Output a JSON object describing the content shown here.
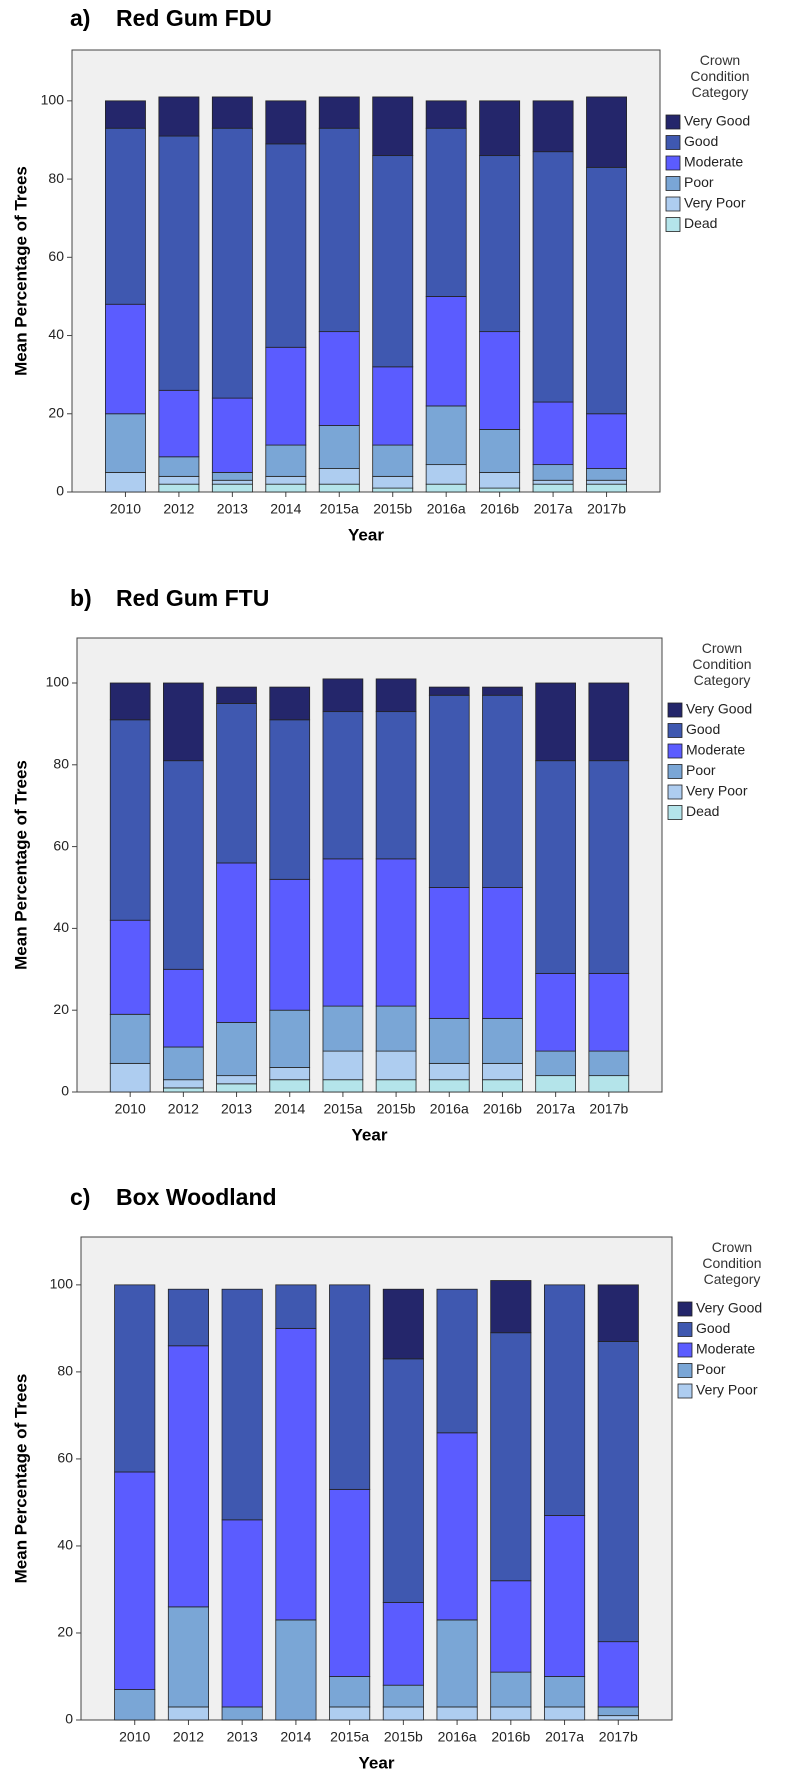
{
  "chart_data": [
    {
      "type": "stacked_bar",
      "panel": "a)",
      "title": "Red Gum FDU",
      "x_label": "Year",
      "y_label": "Mean Percentage of Trees",
      "legend_title": "Crown Condition Category",
      "categories": [
        "2010",
        "2012",
        "2013",
        "2014",
        "2015a",
        "2015b",
        "2016a",
        "2016b",
        "2017a",
        "2017b"
      ],
      "ylim": [
        0,
        113
      ],
      "yticks": [
        0,
        20,
        40,
        60,
        80,
        100
      ],
      "grid": false,
      "series": [
        {
          "name": "Dead",
          "color": "#b4e4ea",
          "values": [
            0,
            2,
            2,
            2,
            2,
            1,
            2,
            1,
            2,
            2
          ]
        },
        {
          "name": "Very Poor",
          "color": "#aecdf0",
          "values": [
            5,
            2,
            1,
            2,
            4,
            3,
            5,
            4,
            1,
            1
          ]
        },
        {
          "name": "Poor",
          "color": "#7aa6d6",
          "values": [
            15,
            5,
            2,
            8,
            11,
            8,
            15,
            11,
            4,
            3
          ]
        },
        {
          "name": "Moderate",
          "color": "#5b5cff",
          "values": [
            28,
            17,
            19,
            25,
            24,
            20,
            28,
            25,
            16,
            14
          ]
        },
        {
          "name": "Good",
          "color": "#3f58b0",
          "values": [
            45,
            65,
            69,
            52,
            52,
            54,
            43,
            45,
            64,
            63
          ]
        },
        {
          "name": "Very Good",
          "color": "#24266b",
          "values": [
            7,
            10,
            8,
            11,
            8,
            15,
            7,
            14,
            13,
            18
          ]
        }
      ]
    },
    {
      "type": "stacked_bar",
      "panel": "b)",
      "title": "Red Gum FTU",
      "x_label": "Year",
      "y_label": "Mean Percentage of Trees",
      "legend_title": "Crown Condition Category",
      "categories": [
        "2010",
        "2012",
        "2013",
        "2014",
        "2015a",
        "2015b",
        "2016a",
        "2016b",
        "2017a",
        "2017b"
      ],
      "ylim": [
        0,
        111
      ],
      "yticks": [
        0,
        20,
        40,
        60,
        80,
        100
      ],
      "grid": false,
      "series": [
        {
          "name": "Dead",
          "color": "#b4e4ea",
          "values": [
            0,
            1,
            2,
            3,
            3,
            3,
            3,
            3,
            4,
            4
          ]
        },
        {
          "name": "Very Poor",
          "color": "#aecdf0",
          "values": [
            7,
            2,
            2,
            3,
            7,
            7,
            4,
            4,
            0,
            0
          ]
        },
        {
          "name": "Poor",
          "color": "#7aa6d6",
          "values": [
            12,
            8,
            13,
            14,
            11,
            11,
            11,
            11,
            6,
            6
          ]
        },
        {
          "name": "Moderate",
          "color": "#5b5cff",
          "values": [
            23,
            19,
            39,
            32,
            36,
            36,
            32,
            32,
            19,
            19
          ]
        },
        {
          "name": "Good",
          "color": "#3f58b0",
          "values": [
            49,
            51,
            39,
            39,
            36,
            36,
            47,
            47,
            52,
            52
          ]
        },
        {
          "name": "Very Good",
          "color": "#24266b",
          "values": [
            9,
            19,
            4,
            8,
            8,
            8,
            2,
            2,
            19,
            19
          ]
        }
      ]
    },
    {
      "type": "stacked_bar",
      "panel": "c)",
      "title": "Box Woodland",
      "x_label": "Year",
      "y_label": "Mean Percentage of Trees",
      "legend_title": "Crown Condition Category",
      "categories": [
        "2010",
        "2012",
        "2013",
        "2014",
        "2015a",
        "2015b",
        "2016a",
        "2016b",
        "2017a",
        "2017b"
      ],
      "ylim": [
        0,
        111
      ],
      "yticks": [
        0,
        20,
        40,
        60,
        80,
        100
      ],
      "grid": false,
      "series": [
        {
          "name": "Very Poor",
          "color": "#aecdf0",
          "values": [
            0,
            3,
            0,
            0,
            3,
            3,
            3,
            3,
            3,
            1
          ]
        },
        {
          "name": "Poor",
          "color": "#7aa6d6",
          "values": [
            7,
            23,
            3,
            23,
            7,
            5,
            20,
            8,
            7,
            2
          ]
        },
        {
          "name": "Moderate",
          "color": "#5b5cff",
          "values": [
            50,
            60,
            43,
            67,
            43,
            19,
            43,
            21,
            37,
            15
          ]
        },
        {
          "name": "Good",
          "color": "#3f58b0",
          "values": [
            43,
            13,
            53,
            10,
            47,
            56,
            33,
            57,
            53,
            69
          ]
        },
        {
          "name": "Very Good",
          "color": "#24266b",
          "values": [
            0,
            0,
            0,
            0,
            0,
            16,
            0,
            12,
            0,
            13
          ]
        }
      ]
    }
  ]
}
